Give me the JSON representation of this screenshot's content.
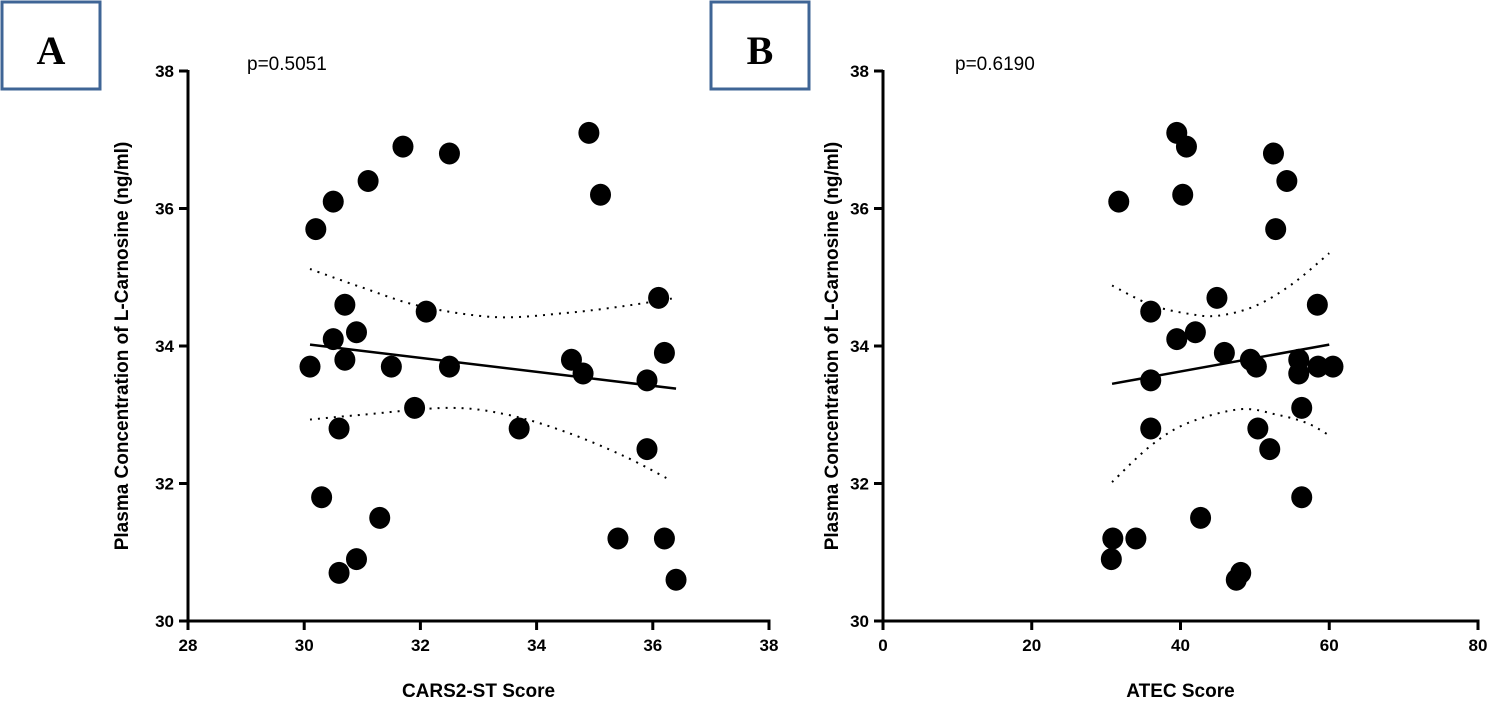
{
  "chart_data": [
    {
      "type": "scatter",
      "panel_label": "A",
      "annotation": "p=0.5051",
      "xlabel": "CARS2-ST Score",
      "ylabel": "Plasma Concentration of L-Carnosine (ng/ml)",
      "xlim": [
        28,
        38
      ],
      "ylim": [
        30,
        38
      ],
      "xticks": [
        "28",
        "30",
        "32",
        "34",
        "36",
        "38"
      ],
      "yticks": [
        "30",
        "32",
        "34",
        "36",
        "38"
      ],
      "grid": false,
      "points": [
        [
          30.2,
          35.7
        ],
        [
          30.5,
          36.1
        ],
        [
          31.1,
          36.4
        ],
        [
          31.7,
          36.9
        ],
        [
          32.5,
          36.8
        ],
        [
          34.9,
          37.1
        ],
        [
          35.1,
          36.2
        ],
        [
          30.7,
          34.6
        ],
        [
          32.1,
          34.5
        ],
        [
          36.1,
          34.7
        ],
        [
          30.5,
          34.1
        ],
        [
          30.9,
          34.2
        ],
        [
          30.1,
          33.7
        ],
        [
          30.7,
          33.8
        ],
        [
          31.5,
          33.7
        ],
        [
          32.5,
          33.7
        ],
        [
          34.6,
          33.8
        ],
        [
          34.8,
          33.6
        ],
        [
          35.9,
          33.5
        ],
        [
          36.2,
          33.9
        ],
        [
          31.9,
          33.1
        ],
        [
          30.6,
          32.8
        ],
        [
          33.7,
          32.8
        ],
        [
          35.9,
          32.5
        ],
        [
          30.3,
          31.8
        ],
        [
          31.3,
          31.5
        ],
        [
          35.4,
          31.2
        ],
        [
          36.2,
          31.2
        ],
        [
          30.9,
          30.9
        ],
        [
          30.6,
          30.7
        ],
        [
          36.4,
          30.6
        ]
      ],
      "fit_line": [
        [
          30.1,
          34.02
        ],
        [
          36.4,
          33.38
        ]
      ],
      "ci_upper": [
        [
          30.1,
          35.12
        ],
        [
          31.0,
          34.85
        ],
        [
          32.0,
          34.58
        ],
        [
          33.3,
          34.42
        ],
        [
          34.5,
          34.48
        ],
        [
          35.5,
          34.58
        ],
        [
          36.4,
          34.7
        ]
      ],
      "ci_lower": [
        [
          30.1,
          32.93
        ],
        [
          31.0,
          33.0
        ],
        [
          32.5,
          33.1
        ],
        [
          33.5,
          33.0
        ],
        [
          34.5,
          32.75
        ],
        [
          35.5,
          32.4
        ],
        [
          36.3,
          32.05
        ]
      ],
      "marker_color": "#000000"
    },
    {
      "type": "scatter",
      "panel_label": "B",
      "annotation": "p=0.6190",
      "xlabel": "ATEC Score",
      "ylabel": "Plasma Concentration of L-Carnosine (ng/ml)",
      "xlim": [
        0,
        80
      ],
      "ylim": [
        30,
        38
      ],
      "xticks": [
        "0",
        "20",
        "40",
        "60",
        "80"
      ],
      "yticks": [
        "30",
        "32",
        "34",
        "36",
        "38"
      ],
      "grid": false,
      "points": [
        [
          39.5,
          37.1
        ],
        [
          40.8,
          36.9
        ],
        [
          52.5,
          36.8
        ],
        [
          54.3,
          36.4
        ],
        [
          31.7,
          36.1
        ],
        [
          40.3,
          36.2
        ],
        [
          52.8,
          35.7
        ],
        [
          44.9,
          34.7
        ],
        [
          58.4,
          34.6
        ],
        [
          36,
          34.5
        ],
        [
          42,
          34.2
        ],
        [
          39.5,
          34.1
        ],
        [
          45.9,
          33.9
        ],
        [
          49.4,
          33.8
        ],
        [
          50.2,
          33.7
        ],
        [
          55.9,
          33.8
        ],
        [
          55.9,
          33.6
        ],
        [
          58.5,
          33.7
        ],
        [
          60.5,
          33.7
        ],
        [
          36,
          33.5
        ],
        [
          56.3,
          33.1
        ],
        [
          36,
          32.8
        ],
        [
          50.4,
          32.8
        ],
        [
          52,
          32.5
        ],
        [
          56.3,
          31.8
        ],
        [
          42.7,
          31.5
        ],
        [
          30.9,
          31.2
        ],
        [
          34,
          31.2
        ],
        [
          30.7,
          30.9
        ],
        [
          48.1,
          30.7
        ],
        [
          47.5,
          30.6
        ]
      ],
      "fit_line": [
        [
          30.8,
          33.45
        ],
        [
          60,
          34.02
        ]
      ],
      "ci_upper": [
        [
          30.8,
          34.88
        ],
        [
          36,
          34.6
        ],
        [
          41,
          34.47
        ],
        [
          45,
          34.44
        ],
        [
          50,
          34.58
        ],
        [
          55,
          34.9
        ],
        [
          60,
          35.35
        ]
      ],
      "ci_lower": [
        [
          30.8,
          32.02
        ],
        [
          36,
          32.55
        ],
        [
          41,
          32.88
        ],
        [
          48,
          33.08
        ],
        [
          53,
          33.0
        ],
        [
          57,
          32.88
        ],
        [
          60,
          32.7
        ]
      ],
      "marker_color": "#000000"
    }
  ],
  "colors": {
    "panel_box_border": "#3f6596"
  }
}
